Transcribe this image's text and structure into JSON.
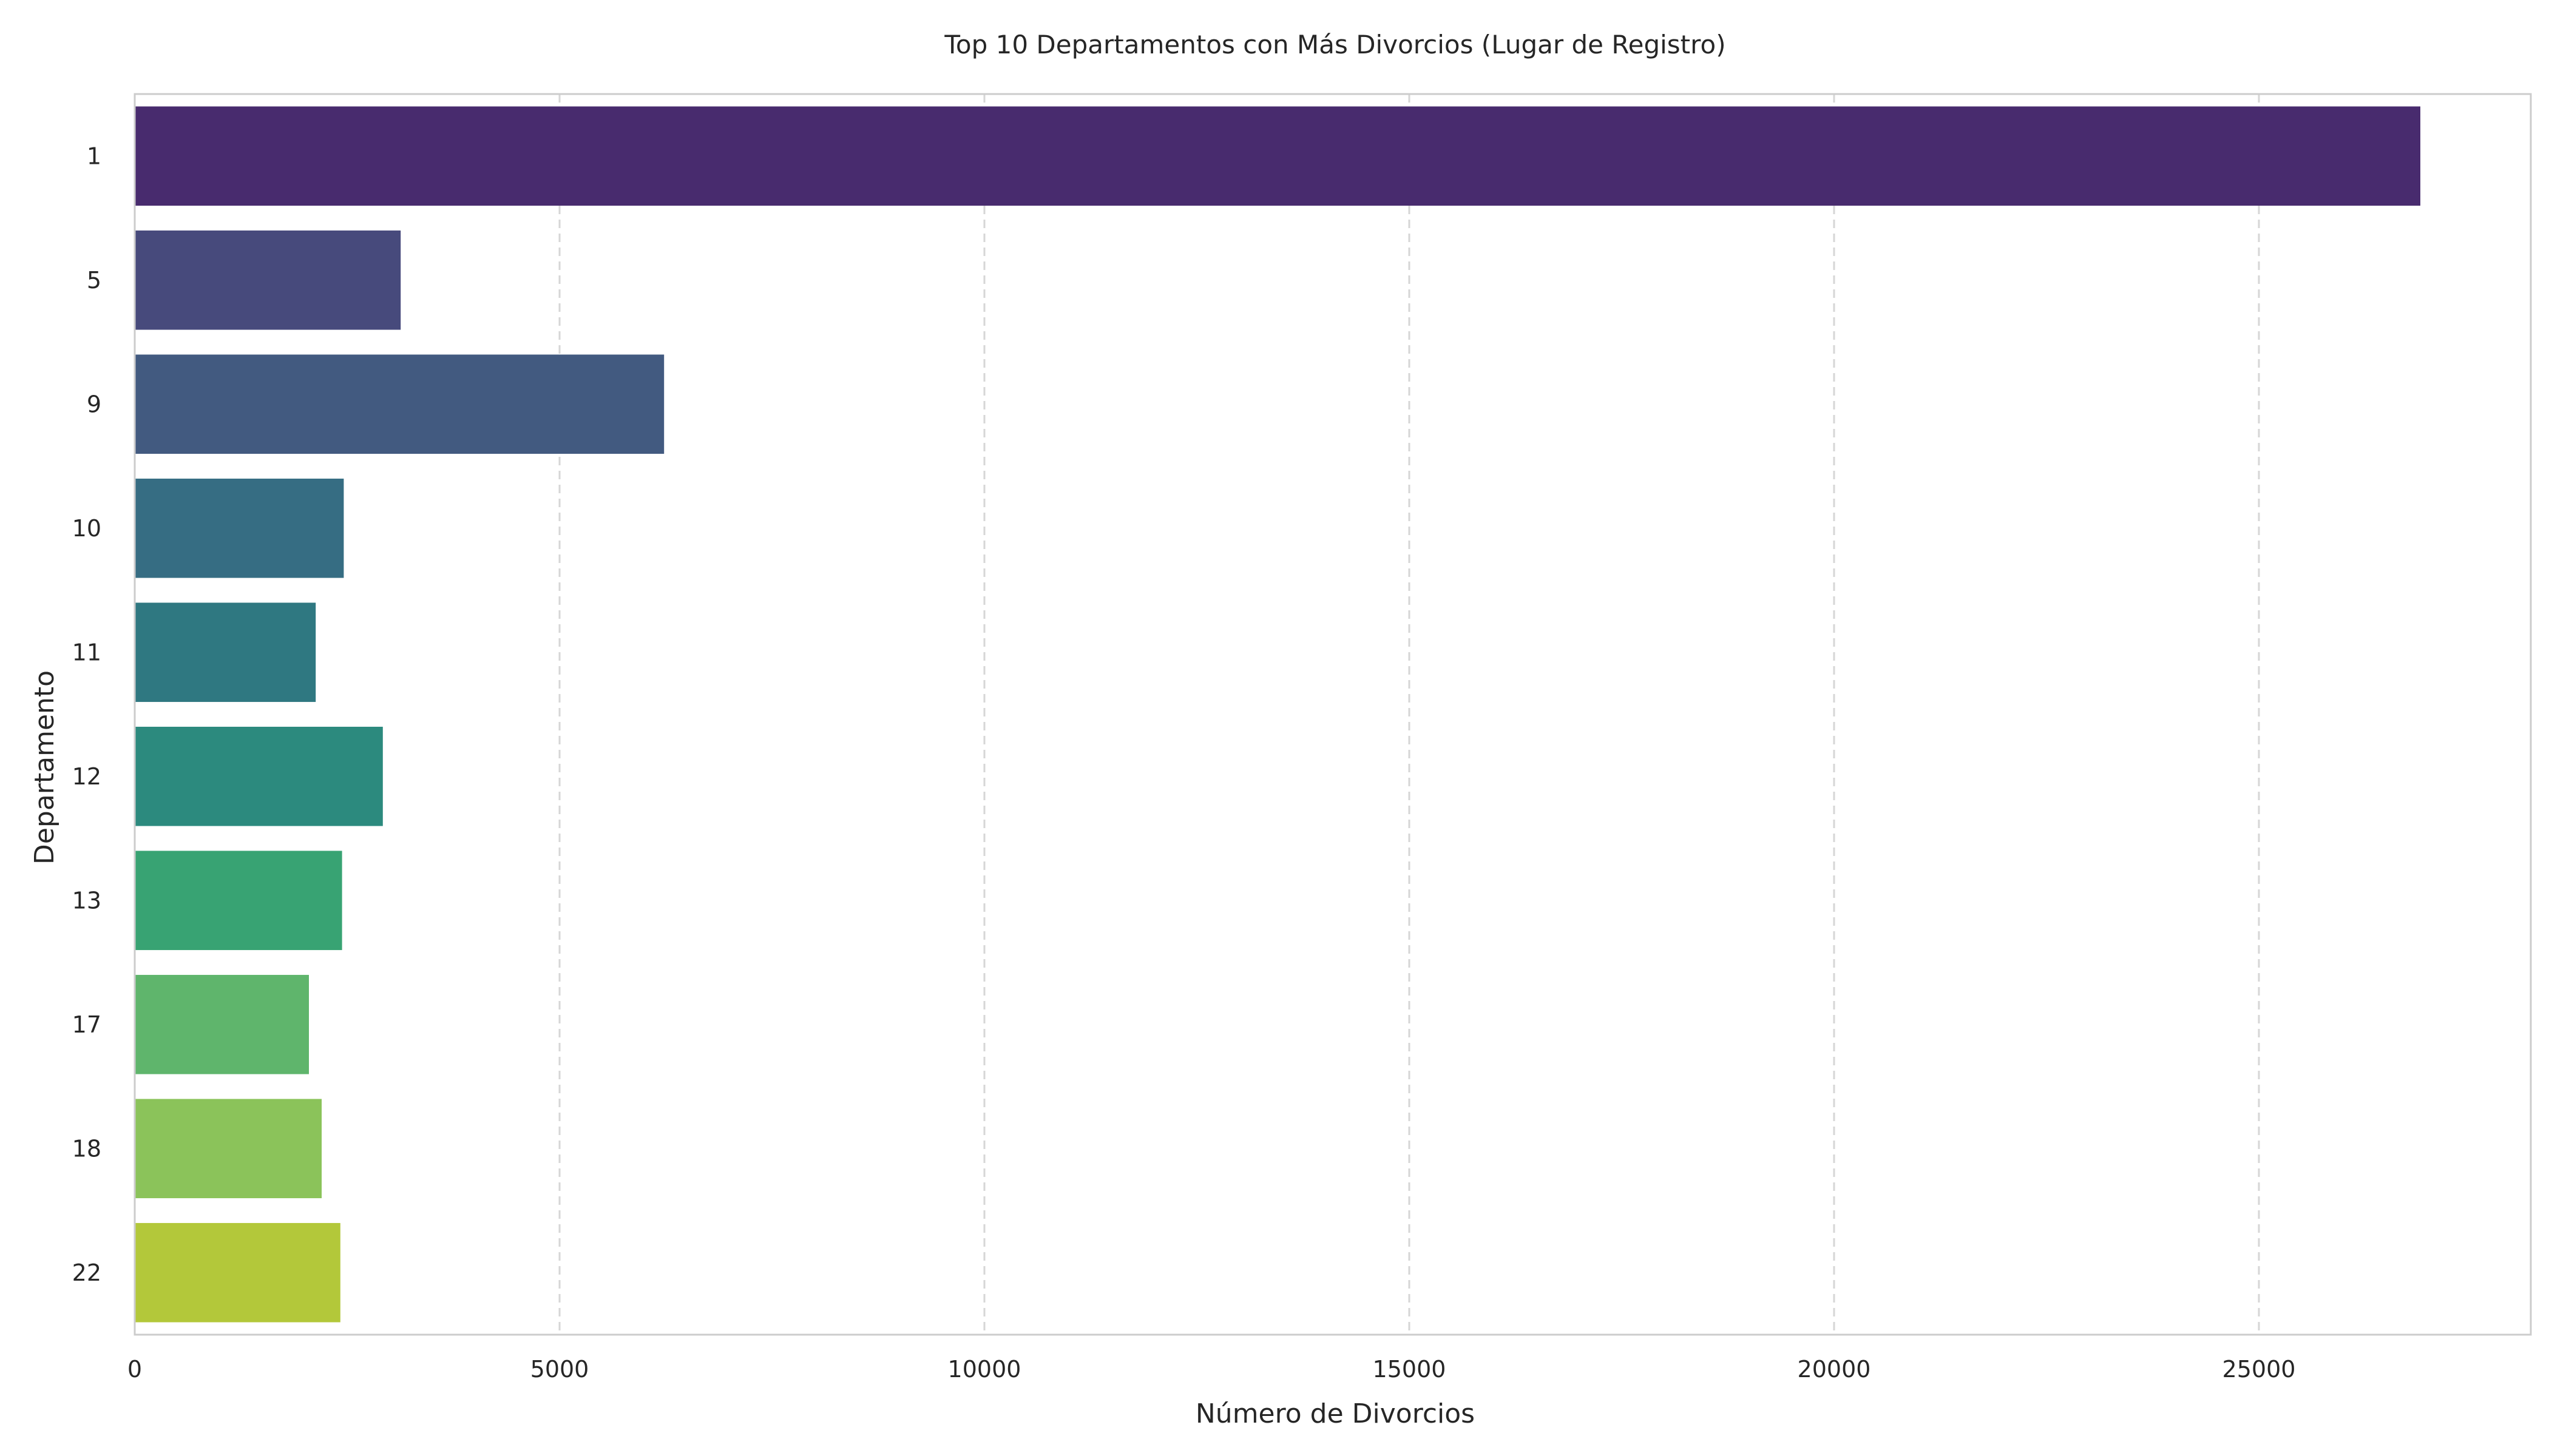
{
  "chart_data": {
    "type": "bar",
    "orientation": "horizontal",
    "title": "Top 10 Departamentos con Más Divorcios (Lugar de Registro)",
    "xlabel": "Número de Divorcios",
    "ylabel": "Departamento",
    "categories": [
      "1",
      "5",
      "9",
      "10",
      "11",
      "12",
      "13",
      "17",
      "18",
      "22"
    ],
    "values": [
      26900,
      3130,
      6230,
      2460,
      2130,
      2920,
      2440,
      2050,
      2200,
      2420
    ],
    "colors": [
      "#482b6e",
      "#474a7c",
      "#425a80",
      "#366d83",
      "#2f7881",
      "#2c8a7e",
      "#38a373",
      "#5fb56c",
      "#8bc35a",
      "#b3c83a"
    ],
    "xlim": [
      0,
      28200
    ],
    "xticks": [
      0,
      5000,
      10000,
      15000,
      20000,
      25000
    ],
    "xtick_labels": [
      "0",
      "5000",
      "10000",
      "15000",
      "20000",
      "25000"
    ],
    "grid": "x-dashed",
    "legend": "none"
  }
}
